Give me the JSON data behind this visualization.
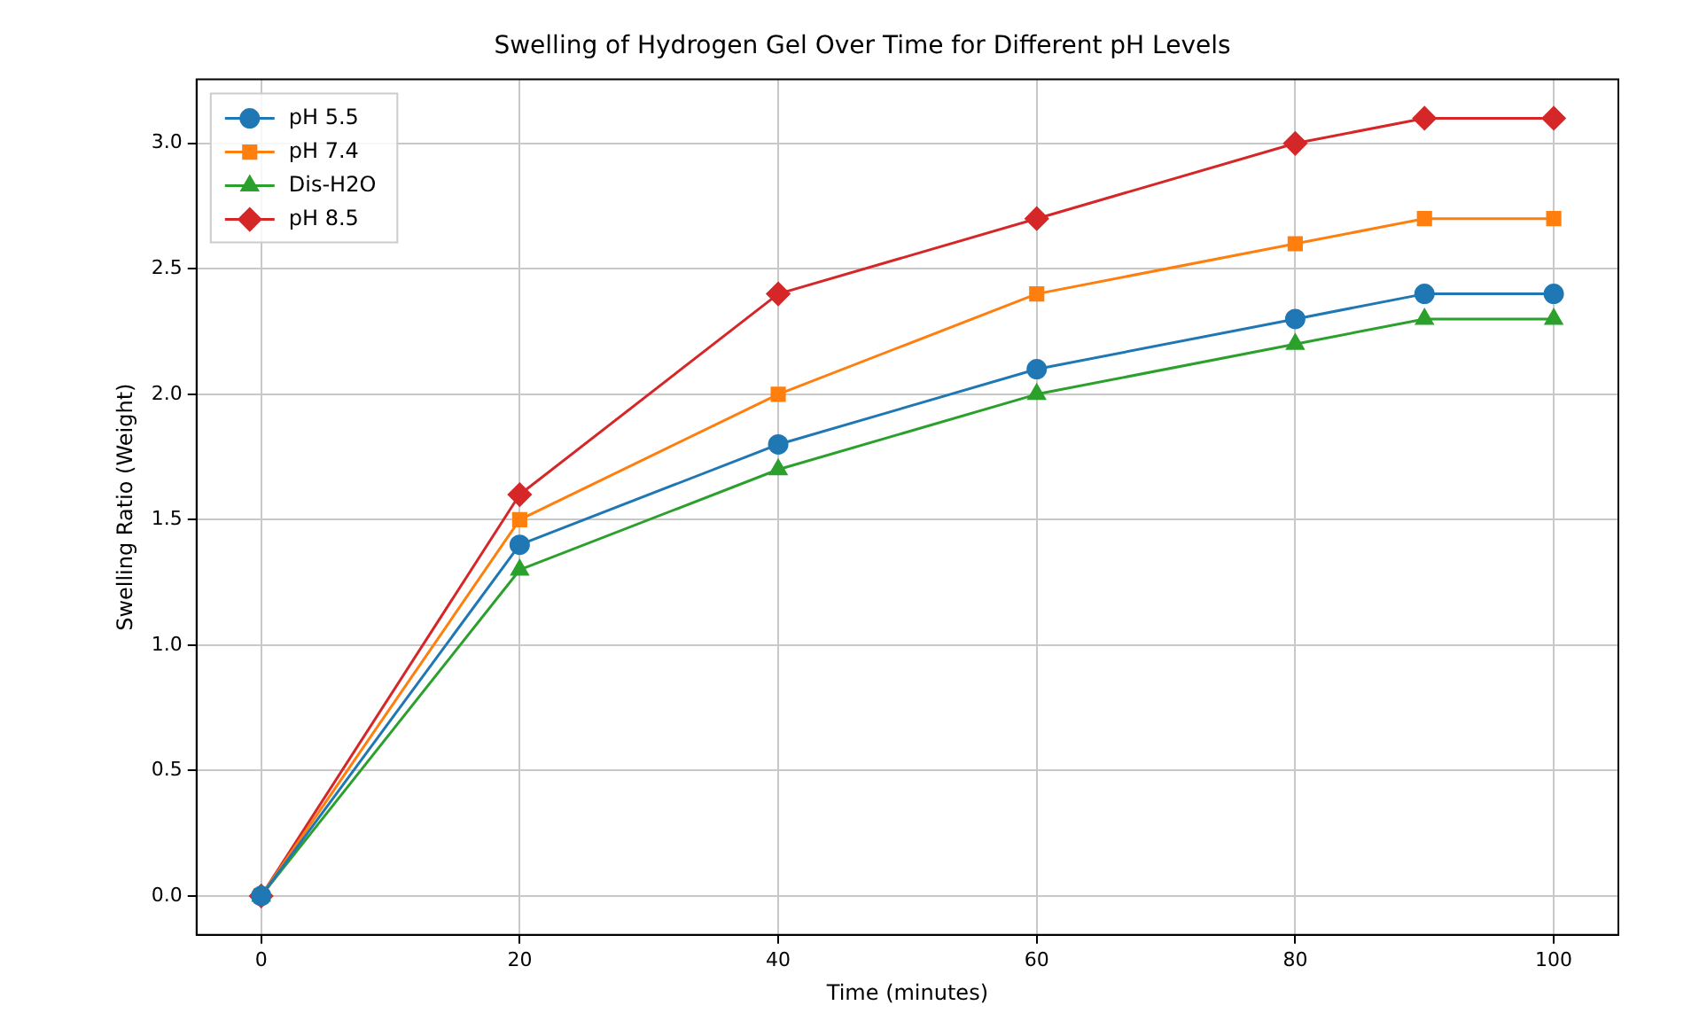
{
  "chart_data": {
    "type": "line",
    "title": "Swelling of Hydrogen Gel Over Time for Different pH Levels",
    "xlabel": "Time (minutes)",
    "ylabel": "Swelling Ratio (Weight)",
    "x": [
      0,
      20,
      40,
      60,
      80,
      90,
      100
    ],
    "series": [
      {
        "name": "pH 5.5",
        "color": "#1f77b4",
        "marker": "circle",
        "values": [
          0,
          1.4,
          1.8,
          2.1,
          2.3,
          2.4,
          2.4
        ]
      },
      {
        "name": "pH 7.4",
        "color": "#ff7f0e",
        "marker": "square",
        "values": [
          0,
          1.5,
          2.0,
          2.4,
          2.6,
          2.7,
          2.7
        ]
      },
      {
        "name": "Dis-H2O",
        "color": "#2ca02c",
        "marker": "triangle",
        "values": [
          0,
          1.3,
          1.7,
          2.0,
          2.2,
          2.3,
          2.3
        ]
      },
      {
        "name": "pH 8.5",
        "color": "#d62728",
        "marker": "diamond",
        "values": [
          0,
          1.6,
          2.4,
          2.7,
          3.0,
          3.1,
          3.1
        ]
      }
    ],
    "xlim": [
      -5,
      105
    ],
    "xticks": [
      0,
      20,
      40,
      60,
      80,
      100
    ],
    "ylim": [
      -0.155,
      3.255
    ],
    "yticks": [
      {
        "value": 0,
        "label": "0.0"
      },
      {
        "value": 0.5,
        "label": "0.5"
      },
      {
        "value": 1,
        "label": "1.0"
      },
      {
        "value": 1.5,
        "label": "1.5"
      },
      {
        "value": 2,
        "label": "2.0"
      },
      {
        "value": 2.5,
        "label": "2.5"
      },
      {
        "value": 3,
        "label": "3.0"
      }
    ],
    "grid": true,
    "legend": "top left",
    "line_style": "solid"
  }
}
